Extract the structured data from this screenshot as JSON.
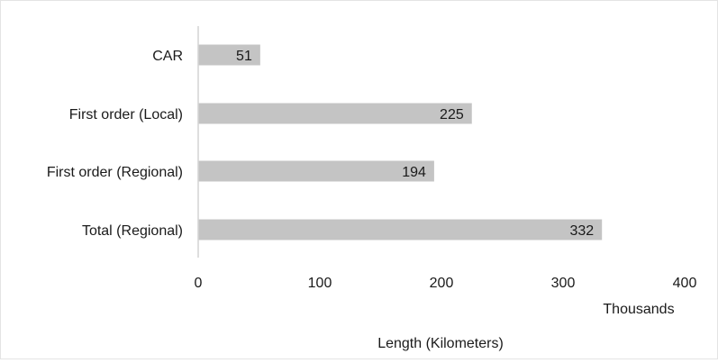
{
  "chart_data": {
    "type": "bar",
    "orientation": "horizontal",
    "categories": [
      "CAR",
      "First order (Local)",
      "First order (Regional)",
      "Total (Regional)"
    ],
    "values": [
      51,
      225,
      194,
      332
    ],
    "data_labels": [
      "51",
      "225",
      "194",
      "332"
    ],
    "xticks": [
      0,
      100,
      200,
      300,
      400
    ],
    "xtick_labels": [
      "0",
      "100",
      "200",
      "300",
      "400"
    ],
    "xlim": [
      0,
      400
    ],
    "x_unit_label": "Thousands",
    "xlabel": "Length (Kilometers)",
    "ylabel": "",
    "title": "",
    "grid": false,
    "legend": "none",
    "colors": {
      "bar": "#c4c4c4",
      "axis": "#d4d4d4",
      "text": "#1a1a1a"
    }
  }
}
